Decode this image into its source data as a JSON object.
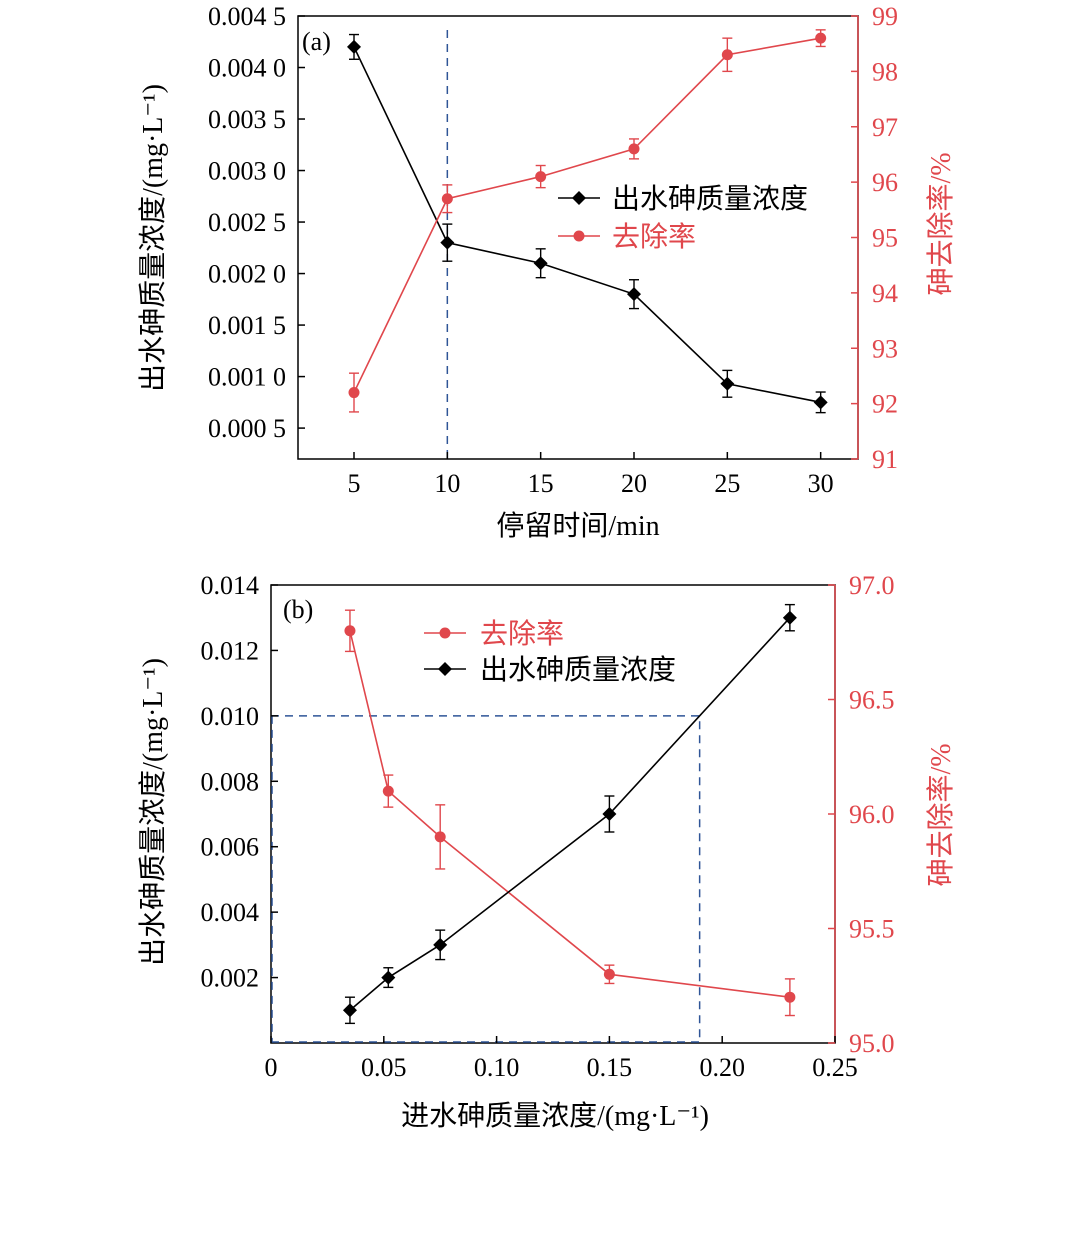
{
  "chart_data": [
    {
      "type": "line",
      "panel_label": "(a)",
      "xlabel": "停留时间/min",
      "ylabel_left": "出水砷质量浓度/(mg·L⁻¹)",
      "ylabel_right": "砷去除率/%",
      "x": [
        5,
        10,
        15,
        20,
        25,
        30
      ],
      "xlim": [
        2,
        32
      ],
      "ylim_left": [
        0.0002,
        0.0045
      ],
      "ylim_right": [
        91,
        99
      ],
      "xticks": [
        "5",
        "10",
        "15",
        "20",
        "25",
        "30"
      ],
      "yticks_left": [
        "0.000 5",
        "0.001 0",
        "0.001 5",
        "0.002 0",
        "0.002 5",
        "0.003 0",
        "0.003 5",
        "0.004 0",
        "0.004 5"
      ],
      "yticks_right": [
        "91",
        "92",
        "93",
        "94",
        "95",
        "96",
        "97",
        "98",
        "99"
      ],
      "reference_lines": {
        "vertical_x": 10
      },
      "legend_position": "center-right",
      "colors": {
        "concentration": "#000000",
        "removal": "#e0474c",
        "reference": "#2f5597"
      },
      "series": [
        {
          "name": "出水砷质量浓度",
          "axis": "left",
          "marker": "diamond",
          "values": [
            0.0042,
            0.0023,
            0.0021,
            0.0018,
            0.00093,
            0.00075
          ],
          "errors": [
            0.00012,
            0.00018,
            0.00014,
            0.00014,
            0.00013,
            0.0001
          ]
        },
        {
          "name": "去除率",
          "axis": "right",
          "marker": "circle",
          "values": [
            92.2,
            95.7,
            96.1,
            96.6,
            98.3,
            98.6
          ],
          "errors": [
            0.35,
            0.25,
            0.2,
            0.18,
            0.3,
            0.15
          ]
        }
      ]
    },
    {
      "type": "line",
      "panel_label": "(b)",
      "xlabel": "进水砷质量浓度/(mg·L⁻¹)",
      "ylabel_left": "出水砷质量浓度/(mg·L⁻¹)",
      "ylabel_right": "砷去除率/%",
      "xlim": [
        0,
        0.25
      ],
      "ylim_left": [
        0,
        0.014
      ],
      "ylim_right": [
        95,
        97
      ],
      "xticks": [
        "0",
        "0.05",
        "0.10",
        "0.15",
        "0.20",
        "0.25"
      ],
      "yticks_left": [
        "0.002",
        "0.004",
        "0.006",
        "0.008",
        "0.010",
        "0.012",
        "0.014"
      ],
      "yticks_right": [
        "95.0",
        "95.5",
        "96.0",
        "96.5",
        "97.0"
      ],
      "reference_lines": {
        "horizontal_y_left": 0.01,
        "vertical_x": 0.19
      },
      "legend_position": "top-center",
      "colors": {
        "concentration": "#000000",
        "removal": "#e0474c",
        "reference": "#2f5597"
      },
      "series": [
        {
          "name": "去除率",
          "axis": "right",
          "marker": "circle",
          "x": [
            0.035,
            0.052,
            0.075,
            0.15,
            0.23
          ],
          "values": [
            96.8,
            96.1,
            95.9,
            95.3,
            95.2
          ],
          "errors": [
            0.09,
            0.07,
            0.14,
            0.04,
            0.08
          ]
        },
        {
          "name": "出水砷质量浓度",
          "axis": "left",
          "marker": "diamond",
          "x": [
            0.035,
            0.052,
            0.075,
            0.15,
            0.23
          ],
          "values": [
            0.001,
            0.002,
            0.003,
            0.007,
            0.013
          ],
          "errors": [
            0.0004,
            0.0003,
            0.00045,
            0.00055,
            0.0004
          ]
        }
      ]
    }
  ]
}
